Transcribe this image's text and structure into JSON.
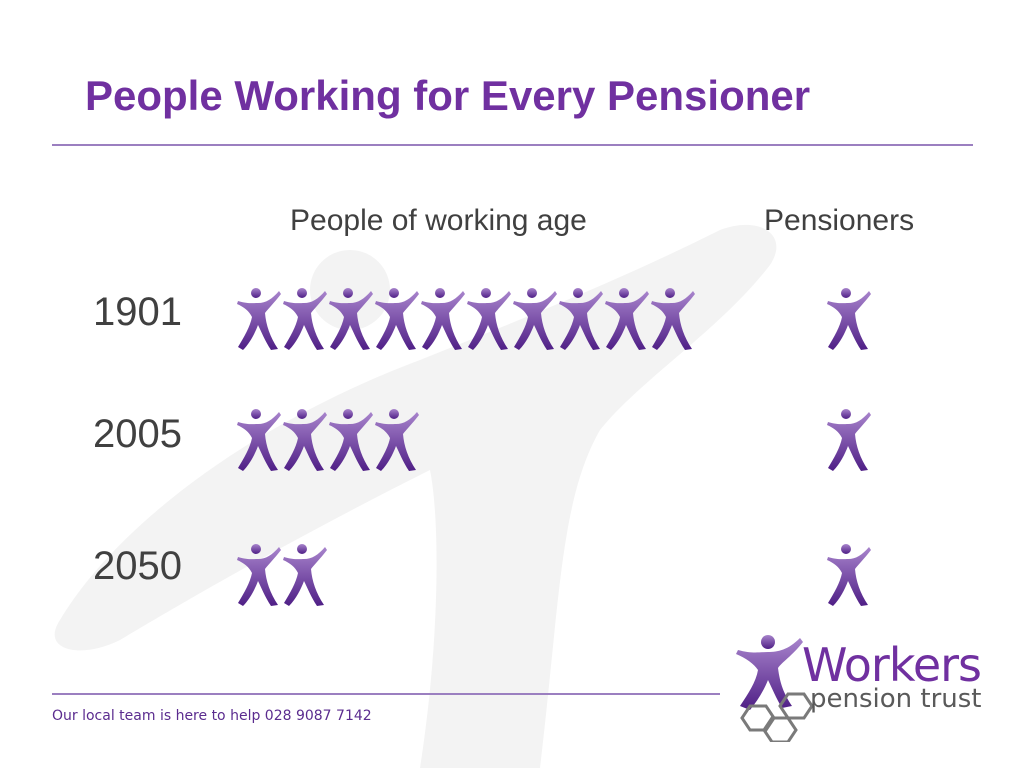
{
  "chart_data": {
    "type": "pictogram",
    "title": "People Working for Every Pensioner",
    "columns": [
      "People of working age",
      "Pensioners"
    ],
    "categories": [
      "1901",
      "2005",
      "2050"
    ],
    "series": [
      {
        "name": "People of working age",
        "values": [
          10,
          4,
          2
        ]
      },
      {
        "name": "Pensioners",
        "values": [
          1,
          1,
          1
        ]
      }
    ]
  },
  "footer": {
    "text": "Our local team is here to help 028 9087 7142"
  },
  "logo": {
    "word": "Workers",
    "sub": "pension trust"
  },
  "colors": {
    "accent": "#7030a0",
    "figure_light": "#a884cc",
    "figure_dark": "#4f1f86",
    "logo_hex": "#7a7a7a"
  },
  "icons": {
    "person": "person-icon"
  }
}
